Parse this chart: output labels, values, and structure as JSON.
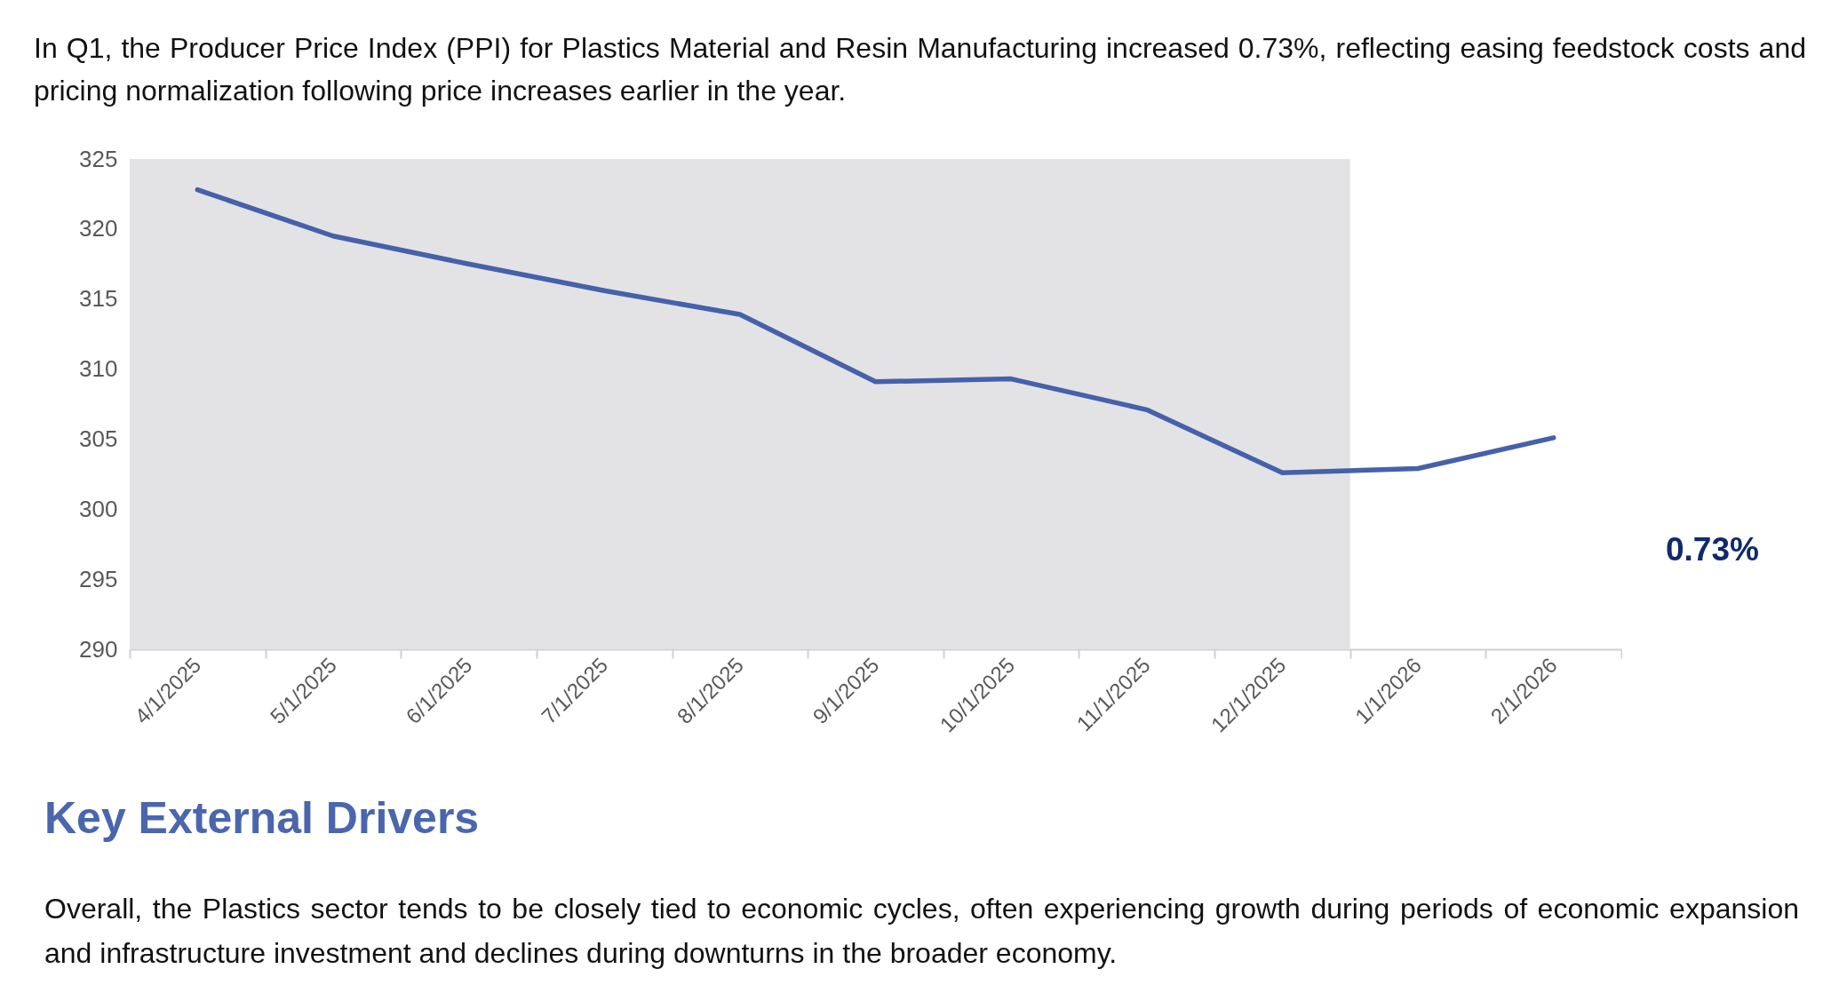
{
  "chart_data": {
    "type": "line",
    "title": "In Q1, the Producer Price Index (PPI) for Plastics Material and Resin Manufacturing increased 0.73%, reflecting easing feedstock costs and pricing normalization following price increases earlier in the year.",
    "categories": [
      "4/1/2025",
      "5/1/2025",
      "6/1/2025",
      "7/1/2025",
      "8/1/2025",
      "9/1/2025",
      "10/1/2025",
      "11/1/2025",
      "12/1/2025",
      "1/1/2026",
      "2/1/2026"
    ],
    "series": [
      {
        "color": "#4661aa",
        "values": [
          322.8,
          319.5,
          317.5,
          315.6,
          313.9,
          309.1,
          309.3,
          307.1,
          302.6,
          302.9,
          305.1
        ]
      }
    ],
    "ylim": [
      290,
      325
    ],
    "yticks": [
      290,
      295,
      300,
      305,
      310,
      315,
      320,
      325
    ],
    "bands": [
      {
        "axis": "x",
        "from": "4/1/2025",
        "to": "12/1/2025",
        "color": "#e3e3e6"
      }
    ],
    "annotations": [
      "0.73%",
      "Key External Drivers",
      "Overall, the Plastics sector tends to be closely tied to economic cycles, often experiencing growth during periods of economic expansion and infrastructure investment and declines during downturns in the broader economy."
    ]
  }
}
